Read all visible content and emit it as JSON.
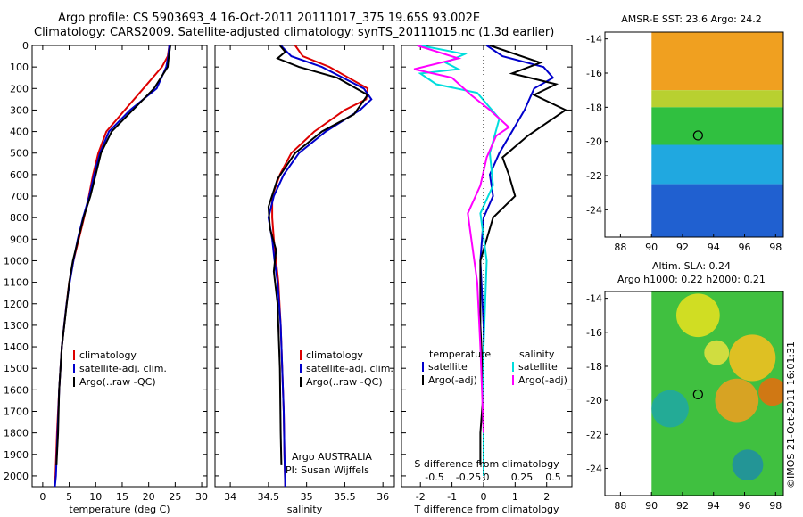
{
  "figure": {
    "title_line1": "Argo profile: CS 5903693_4 16-Oct-2011 20111017_375 19.65S 93.002E",
    "title_line2": "Climatology: CARS2009. Satellite-adjusted climatology: synTS_20111015.nc (1.3d earlier)",
    "credit": "©IMOS 21-Oct-2011 16:01:31"
  },
  "colors": {
    "climatology": "#dd0000",
    "satellite": "#0000cc",
    "argo": "#000000",
    "satellite_salinity": "#00dddd",
    "argo_salinity": "#ff00ff"
  },
  "chart_data": [
    {
      "type": "line",
      "xlabel": "temperature (deg C)",
      "ylabel": "",
      "xlim": [
        -2,
        31
      ],
      "ylim": [
        2050,
        0
      ],
      "xticks": [
        0,
        5,
        10,
        15,
        20,
        25,
        30
      ],
      "yticks": [
        0,
        100,
        200,
        300,
        400,
        500,
        600,
        700,
        800,
        900,
        1000,
        1100,
        1200,
        1300,
        1400,
        1500,
        1600,
        1700,
        1800,
        1900,
        2000
      ],
      "legend": [
        "climatology",
        "satellite-adj. clim.",
        "Argo(..raw -QC)"
      ],
      "legend_position": "bottom-center",
      "series": [
        {
          "name": "climatology",
          "color": "#dd0000",
          "x": [
            23.9,
            23.6,
            22.5,
            19.0,
            15.5,
            12.0,
            10.5,
            9.5,
            8.7,
            7.8,
            6.8,
            5.8,
            5.0,
            4.5,
            3.6,
            3.1,
            2.7,
            2.4,
            2.2
          ],
          "y": [
            0,
            50,
            100,
            200,
            300,
            400,
            500,
            600,
            700,
            800,
            900,
            1000,
            1100,
            1200,
            1400,
            1600,
            1800,
            2000,
            2050
          ]
        },
        {
          "name": "satellite-adj. clim.",
          "color": "#0000cc",
          "x": [
            23.9,
            23.7,
            23.3,
            21.5,
            16.5,
            12.5,
            10.8,
            9.7,
            8.8,
            7.6,
            6.6,
            5.8,
            5.1,
            4.5,
            3.6,
            3.1,
            2.8,
            2.5,
            2.3
          ],
          "y": [
            0,
            50,
            100,
            200,
            300,
            400,
            500,
            600,
            700,
            800,
            900,
            1000,
            1100,
            1200,
            1400,
            1600,
            1800,
            2000,
            2050
          ]
        },
        {
          "name": "Argo(..raw -QC)",
          "color": "#000000",
          "x": [
            24.1,
            23.8,
            23.6,
            21.0,
            17.0,
            13.0,
            11.0,
            10.0,
            9.0,
            7.7,
            6.7,
            5.7,
            5.0,
            3.6,
            3.1,
            2.9,
            2.6
          ],
          "y": [
            0,
            50,
            100,
            200,
            300,
            400,
            500,
            600,
            700,
            800,
            900,
            1000,
            1100,
            1400,
            1600,
            1800,
            1950
          ]
        }
      ]
    },
    {
      "type": "line",
      "xlabel": "salinity",
      "xlim": [
        33.8,
        36.15
      ],
      "ylim": [
        2050,
        0
      ],
      "xticks": [
        34,
        34.5,
        35,
        35.5,
        36
      ],
      "xticklabels": [
        "34",
        "34.5",
        "35",
        "35.5",
        "36"
      ],
      "legend": [
        "climatology",
        "satellite-adj. clim.",
        "Argo(..raw -QC)"
      ],
      "legend_position": "bottom-center",
      "annotation": [
        "Argo AUSTRALIA",
        "PI: Susan Wijffels"
      ],
      "series": [
        {
          "name": "climatology",
          "color": "#dd0000",
          "x": [
            34.85,
            34.95,
            35.3,
            35.8,
            35.78,
            35.5,
            35.1,
            34.8,
            34.65,
            34.55,
            34.55,
            34.57,
            34.6,
            34.63,
            34.66,
            34.68,
            34.7,
            34.71,
            34.72
          ],
          "y": [
            0,
            50,
            100,
            200,
            250,
            300,
            400,
            500,
            600,
            700,
            800,
            900,
            1000,
            1100,
            1300,
            1500,
            1700,
            1900,
            2050
          ]
        },
        {
          "name": "satellite-adj. clim.",
          "color": "#0000cc",
          "x": [
            34.66,
            34.8,
            35.2,
            35.75,
            35.85,
            35.7,
            35.25,
            34.9,
            34.7,
            34.57,
            34.5,
            34.55,
            34.58,
            34.62,
            34.66,
            34.68,
            34.7,
            34.71,
            34.72
          ],
          "y": [
            0,
            50,
            100,
            200,
            250,
            300,
            400,
            500,
            600,
            700,
            800,
            900,
            1000,
            1100,
            1300,
            1500,
            1700,
            1900,
            2050
          ]
        },
        {
          "name": "Argo(..raw -QC)",
          "color": "#000000",
          "x": [
            34.65,
            34.72,
            34.62,
            34.9,
            35.4,
            35.8,
            35.62,
            35.2,
            34.85,
            34.62,
            34.5,
            34.52,
            34.6,
            34.57,
            34.62,
            34.65,
            34.66,
            34.67
          ],
          "y": [
            0,
            30,
            60,
            100,
            150,
            230,
            320,
            400,
            500,
            620,
            750,
            850,
            950,
            1050,
            1200,
            1500,
            1800,
            1950
          ]
        }
      ]
    },
    {
      "type": "line",
      "xlabel": "T difference from climatology",
      "xlabel_top": "S difference from climatology",
      "xlim": [
        -2.6,
        2.8
      ],
      "ylim": [
        2050,
        0
      ],
      "xticks": [
        -2,
        -1,
        0,
        1,
        2
      ],
      "xticklabels": [
        "-2",
        "-1",
        "0",
        "1",
        "2"
      ],
      "s_ticklabels": [
        "-0.5",
        "-0.25",
        "0",
        "0.25",
        "0.5"
      ],
      "legend_temperature_title": "temperature",
      "legend_salinity_title": "salinity",
      "legend": [
        "satellite",
        "Argo(-adj)",
        "satellite",
        "Argo(-adj)"
      ],
      "legend_position": "bottom-center",
      "series": [
        {
          "name": "satellite",
          "color": "#0000cc",
          "x": [
            0.1,
            0.6,
            1.9,
            2.2,
            1.6,
            1.3,
            0.9,
            0.5,
            0.2,
            0.3,
            0.0,
            -0.1,
            0.0,
            0.0,
            0.0
          ],
          "y": [
            0,
            50,
            100,
            150,
            200,
            300,
            400,
            500,
            600,
            700,
            800,
            1000,
            1300,
            1700,
            2000
          ]
        },
        {
          "name": "Argo(-adj)",
          "color": "#000000",
          "x": [
            0.2,
            1.8,
            0.9,
            2.3,
            1.6,
            2.6,
            1.4,
            0.6,
            0.8,
            1.0,
            0.3,
            -0.1,
            -0.1,
            0.0,
            -0.1,
            -0.1
          ],
          "y": [
            0,
            80,
            130,
            180,
            230,
            300,
            420,
            520,
            600,
            700,
            800,
            1000,
            1300,
            1600,
            1800,
            1950
          ]
        },
        {
          "name": "satellite",
          "color": "#00dddd",
          "x": [
            -2.0,
            -0.6,
            -1.2,
            -0.8,
            -2.0,
            -1.5,
            -0.2,
            0.5,
            0.2,
            0.3,
            -0.1,
            0.1,
            0.0,
            0.0
          ],
          "y": [
            0,
            40,
            80,
            110,
            130,
            180,
            220,
            340,
            500,
            650,
            780,
            1000,
            1400,
            2000
          ]
        },
        {
          "name": "Argo(-adj)",
          "color": "#ff00ff",
          "x": [
            -2.1,
            -0.8,
            -2.2,
            -1.0,
            -0.4,
            0.2,
            0.8,
            0.4,
            0.1,
            -0.1,
            -0.5,
            -0.2,
            -0.1,
            0.0
          ],
          "y": [
            0,
            60,
            110,
            150,
            230,
            300,
            380,
            420,
            520,
            650,
            780,
            1100,
            1400,
            1800
          ]
        }
      ]
    },
    {
      "type": "heatmap",
      "title": "AMSR-E SST: 23.6  Argo: 24.2",
      "xlim": [
        87,
        98.5
      ],
      "ylim": [
        -25.6,
        -13.6
      ],
      "xticks": [
        88,
        90,
        92,
        94,
        96,
        98
      ],
      "yticks": [
        -14,
        -16,
        -18,
        -20,
        -22,
        -24
      ],
      "data_x_range": [
        90,
        98.5
      ],
      "marker": {
        "lon": 93.0,
        "lat": -19.65
      },
      "bands": [
        {
          "lat_top": -13.6,
          "lat_bottom": -17.0,
          "color": "#f0a020"
        },
        {
          "lat_top": -17.0,
          "lat_bottom": -18.0,
          "color": "#b8d030"
        },
        {
          "lat_top": -18.0,
          "lat_bottom": -20.2,
          "color": "#30c040"
        },
        {
          "lat_top": -20.2,
          "lat_bottom": -22.5,
          "color": "#20a8e0"
        },
        {
          "lat_top": -22.5,
          "lat_bottom": -25.6,
          "color": "#2060d0"
        }
      ]
    },
    {
      "type": "heatmap",
      "title_line1": "Altim. SLA: 0.24",
      "title_line2": "Argo h1000: 0.22  h2000: 0.21",
      "xlim": [
        87,
        98.5
      ],
      "ylim": [
        -25.6,
        -13.6
      ],
      "xticks": [
        88,
        90,
        92,
        94,
        96,
        98
      ],
      "yticks": [
        -14,
        -16,
        -18,
        -20,
        -22,
        -24
      ],
      "data_x_range": [
        90,
        98.5
      ],
      "marker": {
        "lon": 93.0,
        "lat": -19.65
      },
      "base_color": "#40c040",
      "blobs": [
        {
          "lon": 93.0,
          "lat": -15.0,
          "r": 1.4,
          "color": "#e0e020"
        },
        {
          "lon": 96.5,
          "lat": -17.5,
          "r": 1.5,
          "color": "#f0c020"
        },
        {
          "lon": 97.8,
          "lat": -19.5,
          "r": 0.9,
          "color": "#e07010"
        },
        {
          "lon": 95.5,
          "lat": -20.0,
          "r": 1.4,
          "color": "#e8a020"
        },
        {
          "lon": 91.2,
          "lat": -20.5,
          "r": 1.2,
          "color": "#20a8a0"
        },
        {
          "lon": 96.2,
          "lat": -23.8,
          "r": 1.0,
          "color": "#2090a0"
        },
        {
          "lon": 94.2,
          "lat": -17.2,
          "r": 0.8,
          "color": "#e0e040"
        }
      ]
    }
  ]
}
